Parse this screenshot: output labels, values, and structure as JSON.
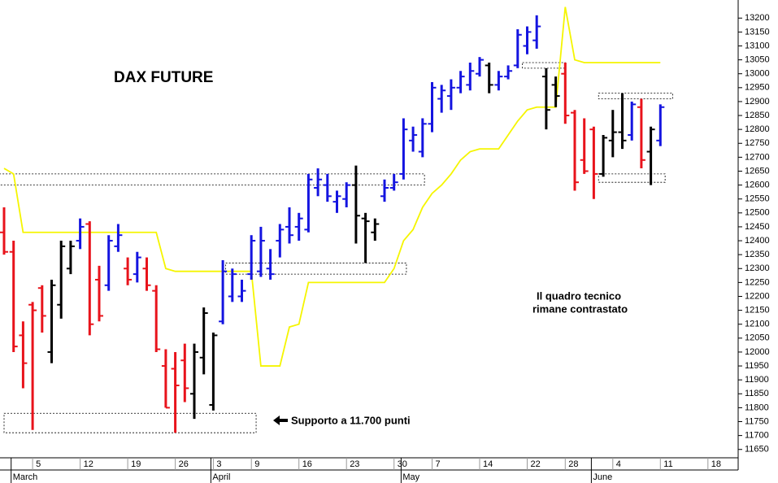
{
  "chart_data": {
    "type": "ohlc",
    "title": "DAX FUTURE",
    "annotations": [
      "Supporto a 11.700 punti",
      "Il quadro tecnico",
      "rimane contrastato"
    ],
    "categories": [
      null,
      null,
      null,
      "5",
      null,
      null,
      null,
      null,
      "12",
      null,
      null,
      null,
      null,
      "19",
      null,
      null,
      null,
      null,
      "26",
      null,
      null,
      null,
      "3",
      null,
      null,
      null,
      "9",
      null,
      null,
      null,
      null,
      "16",
      null,
      null,
      null,
      null,
      "23",
      null,
      null,
      null,
      null,
      "30",
      null,
      null,
      null,
      "7",
      null,
      null,
      null,
      null,
      "14",
      null,
      null,
      null,
      null,
      "22",
      null,
      null,
      null,
      "28",
      null,
      null,
      null,
      null,
      "4",
      null,
      null,
      null,
      null,
      "11",
      null,
      null,
      null,
      null,
      "18",
      null,
      null
    ],
    "month_labels": [
      null,
      "March",
      null,
      null,
      null,
      null,
      null,
      null,
      null,
      null,
      null,
      null,
      null,
      null,
      null,
      null,
      null,
      null,
      null,
      null,
      null,
      null,
      "April",
      null,
      null,
      null,
      null,
      null,
      null,
      null,
      null,
      null,
      null,
      null,
      null,
      null,
      null,
      null,
      null,
      null,
      null,
      null,
      "May",
      null,
      null,
      null,
      null,
      null,
      null,
      null,
      null,
      null,
      null,
      null,
      null,
      null,
      null,
      null,
      null,
      null,
      null,
      null,
      "June",
      null,
      null,
      null,
      null,
      null,
      null,
      null,
      null,
      null,
      null,
      null,
      null,
      null,
      null
    ],
    "open": [
      12430,
      12360,
      12060,
      12170,
      12230,
      12000,
      12170,
      12300,
      12400,
      12460,
      12260,
      12240,
      12380,
      12300,
      12280,
      12300,
      12220,
      11950,
      11940,
      11970,
      11850,
      11980,
      11810,
      12110,
      12200,
      12200,
      12280,
      12290,
      12300,
      12400,
      12450,
      12450,
      12440,
      12590,
      12600,
      12540,
      12550,
      12600,
      12480,
      12430,
      12560,
      12590,
      12640,
      12760,
      12720,
      12820,
      12910,
      12920,
      12950,
      12960,
      13000,
      13030,
      12960,
      12990,
      13030,
      13100,
      13120,
      12990,
      12960,
      13000,
      12860,
      12690,
      12800,
      12640,
      12760,
      12790,
      12780,
      12880,
      12720,
      12760,
      null,
      null,
      null,
      null,
      null,
      null,
      null
    ],
    "high": [
      12520,
      12400,
      12110,
      12180,
      12240,
      12260,
      12400,
      12400,
      12480,
      12470,
      12310,
      12420,
      12460,
      12340,
      12360,
      12340,
      12240,
      12010,
      12000,
      12030,
      12030,
      12160,
      12070,
      12330,
      12300,
      12260,
      12420,
      12450,
      12370,
      12460,
      12520,
      12500,
      12640,
      12660,
      12640,
      12580,
      12610,
      12670,
      12500,
      12480,
      12620,
      12640,
      12840,
      12810,
      12840,
      12970,
      12960,
      12980,
      13010,
      13040,
      13060,
      13040,
      13010,
      13030,
      13160,
      13170,
      13210,
      13020,
      12990,
      13040,
      12870,
      12840,
      12810,
      12780,
      12870,
      12930,
      12900,
      12910,
      12810,
      12890,
      null,
      null,
      null,
      null,
      null,
      null,
      null
    ],
    "low": [
      12350,
      12000,
      11870,
      11720,
      12070,
      11960,
      12120,
      12280,
      12370,
      12060,
      12110,
      12220,
      12360,
      12240,
      12250,
      12220,
      12000,
      11800,
      11710,
      11820,
      11760,
      11920,
      11790,
      12100,
      12180,
      12180,
      12260,
      12270,
      12260,
      12340,
      12390,
      12400,
      12430,
      12560,
      12540,
      12500,
      12520,
      12390,
      12320,
      12400,
      12540,
      12580,
      12620,
      12720,
      12700,
      12790,
      12860,
      12870,
      12930,
      12940,
      12990,
      12930,
      12940,
      12980,
      13020,
      13070,
      13090,
      12800,
      12880,
      12820,
      12580,
      12640,
      12550,
      12630,
      12700,
      12730,
      12760,
      12660,
      12600,
      12740,
      null,
      null,
      null,
      null,
      null,
      null,
      null
    ],
    "close": [
      12360,
      12020,
      11960,
      12150,
      12130,
      12240,
      12380,
      12380,
      12450,
      12100,
      12130,
      12400,
      12420,
      12260,
      12340,
      12240,
      12010,
      11800,
      11880,
      11870,
      12000,
      12140,
      12060,
      12290,
      12280,
      12220,
      12400,
      12400,
      12280,
      12440,
      12420,
      12480,
      12620,
      12620,
      12560,
      12560,
      12600,
      12490,
      12470,
      12460,
      12590,
      12610,
      12800,
      12780,
      12820,
      12950,
      12940,
      12950,
      12990,
      13010,
      13050,
      12960,
      12990,
      13010,
      13140,
      13150,
      13170,
      12870,
      12920,
      12850,
      12610,
      12650,
      12640,
      12770,
      12790,
      12760,
      12890,
      12690,
      12800,
      12880,
      null,
      null,
      null,
      null,
      null,
      null,
      null
    ],
    "bar_colors": [
      "#e8131b",
      "#e8131b",
      "#e8131b",
      "#e8131b",
      "#e8131b",
      "#000000",
      "#000000",
      "#000000",
      "#1414e0",
      "#e8131b",
      "#e8131b",
      "#1414e0",
      "#1414e0",
      "#e8131b",
      "#1414e0",
      "#e8131b",
      "#e8131b",
      "#e8131b",
      "#e8131b",
      "#e8131b",
      "#000000",
      "#000000",
      "#000000",
      "#1414e0",
      "#1414e0",
      "#1414e0",
      "#1414e0",
      "#1414e0",
      "#1414e0",
      "#1414e0",
      "#1414e0",
      "#1414e0",
      "#1414e0",
      "#1414e0",
      "#1414e0",
      "#1414e0",
      "#1414e0",
      "#000000",
      "#000000",
      "#000000",
      "#1414e0",
      "#1414e0",
      "#1414e0",
      "#1414e0",
      "#1414e0",
      "#1414e0",
      "#1414e0",
      "#1414e0",
      "#1414e0",
      "#1414e0",
      "#1414e0",
      "#000000",
      "#1414e0",
      "#1414e0",
      "#1414e0",
      "#1414e0",
      "#1414e0",
      "#000000",
      "#000000",
      "#e8131b",
      "#e8131b",
      "#e8131b",
      "#e8131b",
      "#000000",
      "#000000",
      "#000000",
      "#1414e0",
      "#e8131b",
      "#000000",
      "#1414e0",
      null,
      null,
      null,
      null,
      null,
      null,
      null
    ],
    "lines": [
      {
        "color": "#f5f500",
        "values": [
          12660,
          12640,
          12430,
          12430,
          12430,
          12430,
          12430,
          12430,
          12430,
          12430,
          12430,
          12430,
          12430,
          12430,
          12430,
          12430,
          12430,
          12300,
          12290,
          12290,
          12290,
          12290,
          12290,
          12290,
          12290,
          12290,
          12290,
          11950,
          11950,
          11950,
          12090,
          12100,
          12250,
          12250,
          12250,
          12250,
          12250,
          12250,
          12250,
          12250,
          12250,
          12300,
          12400,
          12440,
          12520,
          12570,
          12600,
          12640,
          12690,
          12720,
          12730,
          12730,
          12730,
          12780,
          12830,
          12870,
          12880,
          12880,
          12880,
          13240,
          13050,
          13040,
          13040,
          13040,
          13040,
          13040,
          13040,
          13040,
          13040,
          13040,
          null,
          null,
          null,
          null,
          null,
          null,
          null
        ]
      }
    ],
    "zones": [
      {
        "x": [
          0,
          26.5
        ],
        "y": [
          11710,
          11780
        ]
      },
      {
        "x": [
          -0.5,
          44.2
        ],
        "y": [
          12600,
          12640
        ]
      },
      {
        "x": [
          23.3,
          42.3
        ],
        "y": [
          12280,
          12320
        ]
      },
      {
        "x": [
          54.5,
          59
        ],
        "y": [
          13020,
          13040
        ]
      },
      {
        "x": [
          62.5,
          70.3
        ],
        "y": [
          12910,
          12930
        ]
      },
      {
        "x": [
          62.5,
          69.5
        ],
        "y": [
          12610,
          12640
        ]
      }
    ],
    "ylim": [
      11620,
      13265
    ],
    "yticks": [
      11650,
      11700,
      11750,
      11800,
      11850,
      11900,
      11950,
      12000,
      12050,
      12100,
      12150,
      12200,
      12250,
      12300,
      12350,
      12400,
      12450,
      12500,
      12550,
      12600,
      12650,
      12700,
      12750,
      12800,
      12850,
      12900,
      12950,
      13000,
      13050,
      13100,
      13150,
      13200
    ]
  }
}
